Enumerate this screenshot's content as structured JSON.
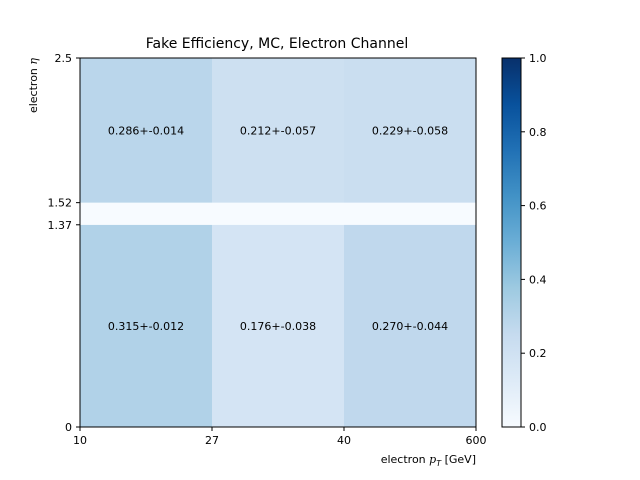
{
  "chart_data": {
    "type": "heatmap",
    "title": "Fake Efficiency, MC, Electron Channel",
    "xlabel_prefix": "electron ",
    "xlabel_var": "p",
    "xlabel_sub": "T",
    "xlabel_unit": " [GeV]",
    "ylabel_prefix": "electron ",
    "ylabel_var": "η",
    "x_edges": [
      "10",
      "27",
      "40",
      "600"
    ],
    "y_edges": [
      "0",
      "1.37",
      "1.52",
      "2.5"
    ],
    "y_edge_values": [
      0,
      1.37,
      1.52,
      2.5
    ],
    "cells": [
      {
        "row": 0,
        "col": 0,
        "value": 0.315,
        "label": "0.315+-0.012"
      },
      {
        "row": 0,
        "col": 1,
        "value": 0.176,
        "label": "0.176+-0.038"
      },
      {
        "row": 0,
        "col": 2,
        "value": 0.27,
        "label": "0.270+-0.044"
      },
      {
        "row": 1,
        "col": 0,
        "value": 0.0,
        "label": ""
      },
      {
        "row": 1,
        "col": 1,
        "value": 0.0,
        "label": ""
      },
      {
        "row": 1,
        "col": 2,
        "value": 0.0,
        "label": ""
      },
      {
        "row": 2,
        "col": 0,
        "value": 0.286,
        "label": "0.286+-0.014"
      },
      {
        "row": 2,
        "col": 1,
        "value": 0.212,
        "label": "0.212+-0.057"
      },
      {
        "row": 2,
        "col": 2,
        "value": 0.229,
        "label": "0.229+-0.058"
      }
    ],
    "colorbar": {
      "colormap": "Blues",
      "range": [
        0.0,
        1.0
      ],
      "ticks": [
        "0.0",
        "0.2",
        "0.4",
        "0.6",
        "0.8",
        "1.0"
      ]
    }
  }
}
